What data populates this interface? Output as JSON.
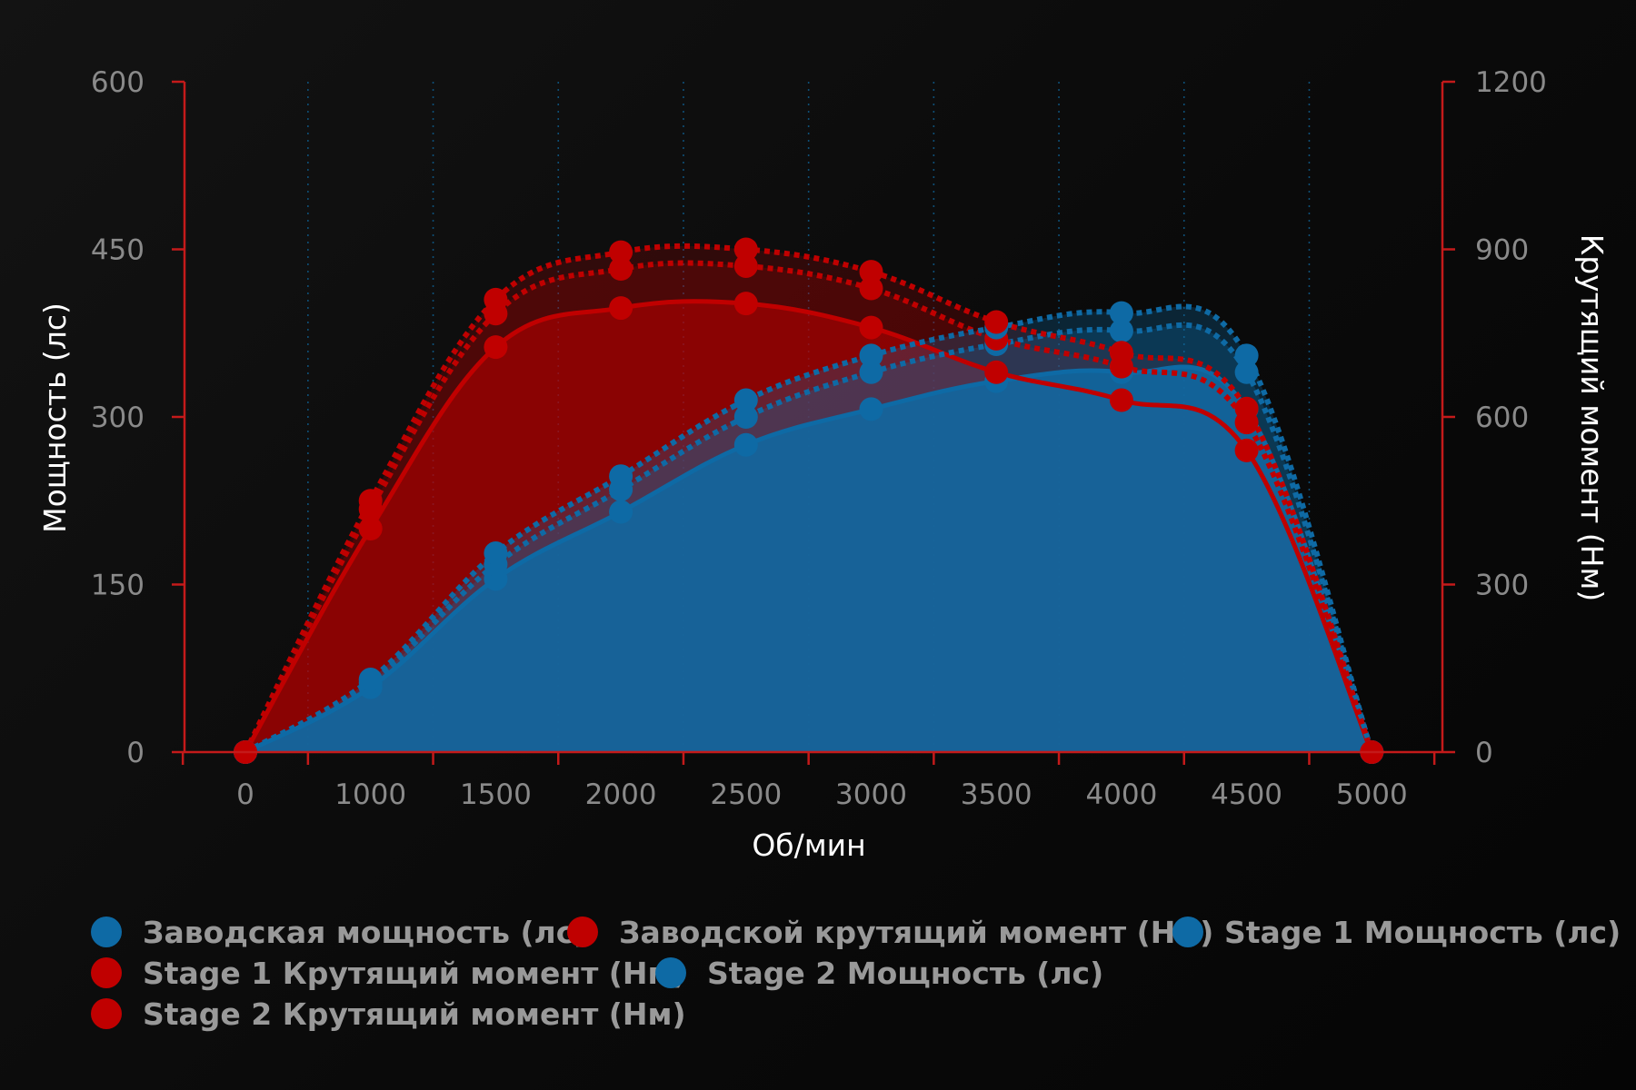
{
  "chart_data": {
    "type": "area",
    "title": "",
    "xlabel": "Об/мин",
    "ylabel_left": "Мощность (лс)",
    "ylabel_right": "Крутящий момент (Нм)",
    "x": [
      0,
      1000,
      1500,
      2000,
      2500,
      3000,
      3500,
      4000,
      4500,
      5000
    ],
    "x_ticks": [
      "0",
      "1000",
      "1500",
      "2000",
      "2500",
      "3000",
      "3500",
      "4000",
      "4500",
      "5000"
    ],
    "ylim_left": [
      0,
      600
    ],
    "ylim_right": [
      0,
      1200
    ],
    "y_ticks_left": [
      "0",
      "150",
      "300",
      "450",
      "600"
    ],
    "y_ticks_right": [
      "0",
      "300",
      "600",
      "900",
      "1200"
    ],
    "grid": "vertical dotted",
    "legend_position": "bottom",
    "colors": {
      "power": "#0e6aa5",
      "torque": "#c00000",
      "axis": "#c41a1a",
      "background": "#0c0c0c"
    },
    "series": [
      {
        "name": "Заводская мощность (лс)",
        "axis": "left",
        "kind": "power",
        "style": "solid",
        "values": [
          0,
          58,
          155,
          215,
          275,
          307,
          332,
          340,
          307,
          0
        ]
      },
      {
        "name": "Заводской крутящий момент (Нм)",
        "axis": "right",
        "kind": "torque",
        "style": "solid",
        "values": [
          0,
          400,
          725,
          795,
          803,
          760,
          680,
          630,
          540,
          0
        ]
      },
      {
        "name": "Stage 1 Мощность (лс)",
        "axis": "left",
        "kind": "power",
        "style": "dotted",
        "values": [
          0,
          62,
          168,
          235,
          300,
          340,
          365,
          377,
          340,
          0
        ]
      },
      {
        "name": "Stage 1 Крутящий момент (Нм)",
        "axis": "right",
        "kind": "torque",
        "style": "dotted",
        "values": [
          0,
          435,
          785,
          865,
          870,
          830,
          740,
          690,
          590,
          0
        ]
      },
      {
        "name": "Stage 2 Мощность (лс)",
        "axis": "left",
        "kind": "power",
        "style": "dotted",
        "values": [
          0,
          65,
          178,
          247,
          315,
          355,
          380,
          393,
          355,
          0
        ]
      },
      {
        "name": "Stage 2 Крутящий момент (Нм)",
        "axis": "right",
        "kind": "torque",
        "style": "dotted",
        "values": [
          0,
          450,
          810,
          895,
          900,
          860,
          770,
          715,
          615,
          0
        ]
      }
    ]
  }
}
